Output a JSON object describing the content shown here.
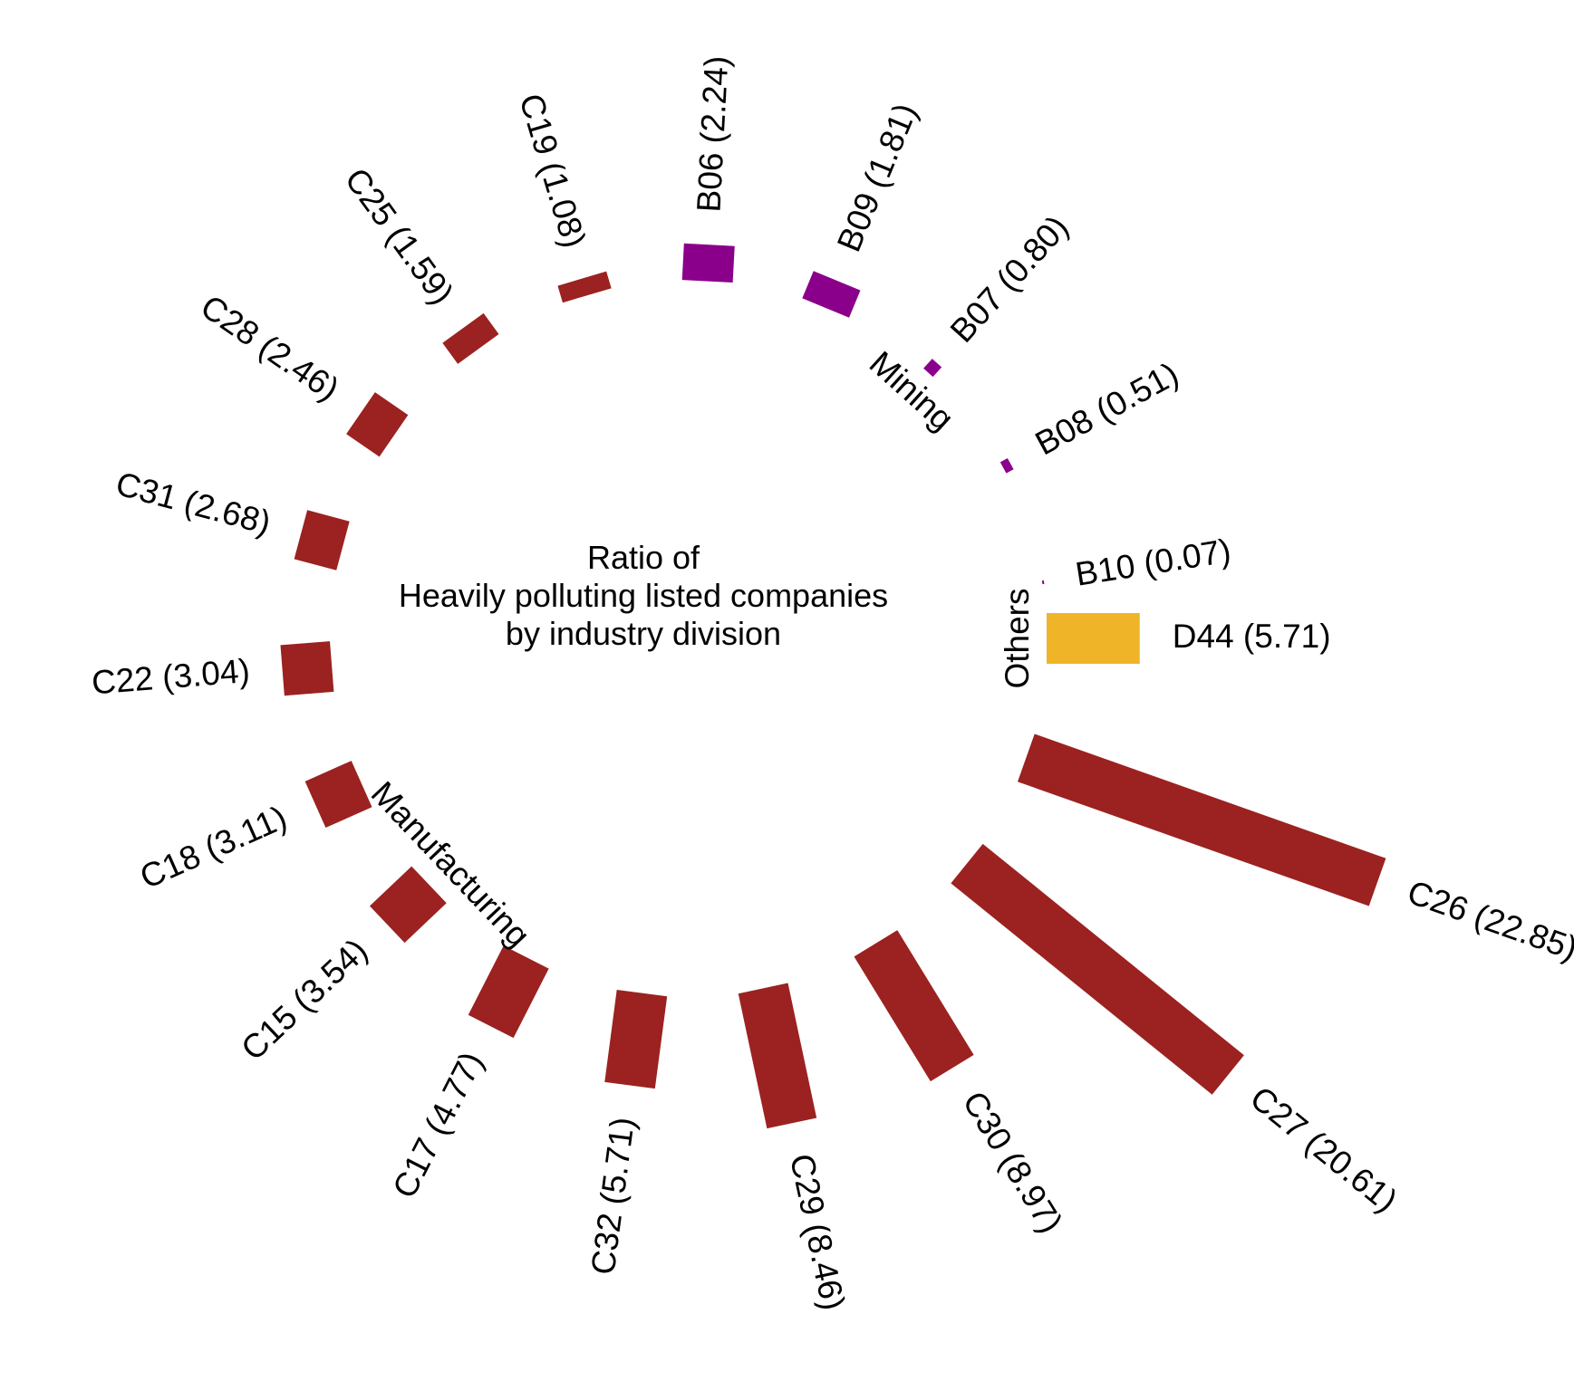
{
  "chart_data": {
    "type": "circular-bar",
    "title": [
      "Ratio of",
      "Heavily polluting listed companies",
      "by industry division"
    ],
    "unit": "%",
    "colors": {
      "Mining": "#8b008b",
      "Manufacturing": "#9b2220",
      "Others": "#f0b429"
    },
    "groups": [
      {
        "name": "Mining",
        "label": "Mining"
      },
      {
        "name": "Manufacturing",
        "label": "Manufacturing"
      },
      {
        "name": "Others",
        "label": "Others"
      }
    ],
    "bars": [
      {
        "code": "D44",
        "value": 5.71,
        "label": "D44 (5.71)",
        "group": "Others"
      },
      {
        "code": "C26",
        "value": 22.85,
        "label": "C26 (22.85)",
        "group": "Manufacturing"
      },
      {
        "code": "C27",
        "value": 20.61,
        "label": "C27 (20.61)",
        "group": "Manufacturing"
      },
      {
        "code": "C30",
        "value": 8.97,
        "label": "C30 (8.97)",
        "group": "Manufacturing"
      },
      {
        "code": "C29",
        "value": 8.46,
        "label": "C29 (8.46)",
        "group": "Manufacturing"
      },
      {
        "code": "C32",
        "value": 5.71,
        "label": "C32 (5.71)",
        "group": "Manufacturing"
      },
      {
        "code": "C17",
        "value": 4.77,
        "label": "C17 (4.77)",
        "group": "Manufacturing"
      },
      {
        "code": "C15",
        "value": 3.54,
        "label": "C15 (3.54)",
        "group": "Manufacturing"
      },
      {
        "code": "C18",
        "value": 3.11,
        "label": "C18 (3.11)",
        "group": "Manufacturing"
      },
      {
        "code": "C22",
        "value": 3.04,
        "label": "C22 (3.04)",
        "group": "Manufacturing"
      },
      {
        "code": "C31",
        "value": 2.68,
        "label": "C31 (2.68)",
        "group": "Manufacturing"
      },
      {
        "code": "C28",
        "value": 2.46,
        "label": "C28 (2.46)",
        "group": "Manufacturing"
      },
      {
        "code": "C25",
        "value": 1.59,
        "label": "C25 (1.59)",
        "group": "Manufacturing"
      },
      {
        "code": "C19",
        "value": 1.08,
        "label": "C19 (1.08)",
        "group": "Manufacturing"
      },
      {
        "code": "B06",
        "value": 2.24,
        "label": "B06 (2.24)",
        "group": "Mining"
      },
      {
        "code": "B09",
        "value": 1.81,
        "label": "B09 (1.81)",
        "group": "Mining"
      },
      {
        "code": "B07",
        "value": 0.8,
        "label": "B07 (0.80)",
        "group": "Mining"
      },
      {
        "code": "B08",
        "value": 0.51,
        "label": "B08 (0.51)",
        "group": "Mining"
      },
      {
        "code": "B10",
        "value": 0.07,
        "label": "B10 (0.07)",
        "group": "Mining"
      }
    ]
  }
}
